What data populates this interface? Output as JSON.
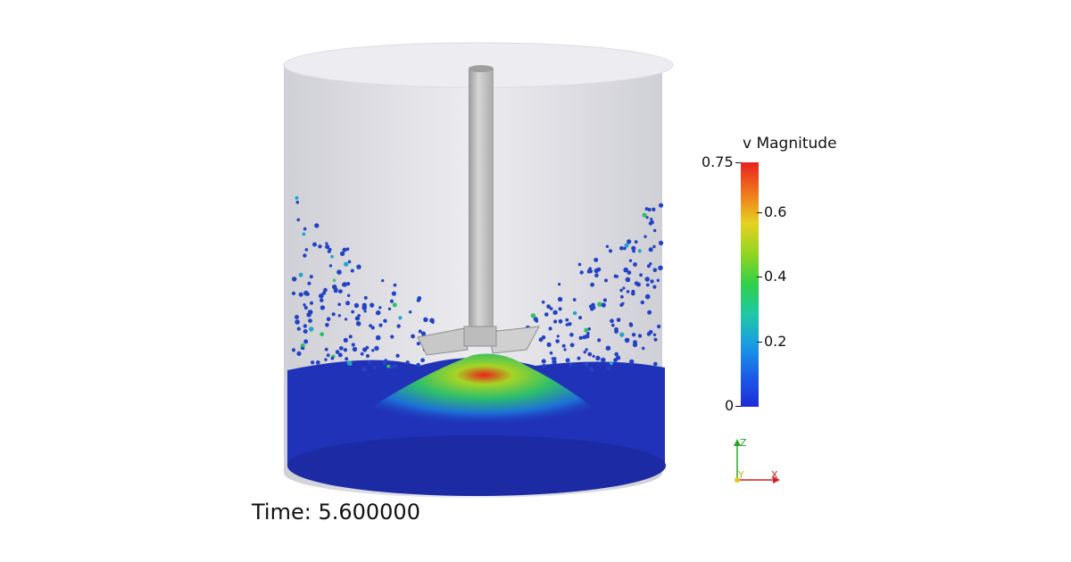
{
  "time_label": "Time: 5.600000",
  "legend": {
    "title": "v Magnitude",
    "ticks": [
      "0.75",
      "0.6",
      "0.4",
      "0.2",
      "0"
    ],
    "range": [
      0,
      0.75
    ]
  },
  "axes": {
    "z": "Z",
    "y": "Y",
    "x": "X"
  },
  "colors": {
    "background": "#ffffff",
    "tank_wall": "#d8d8de",
    "shaft": "#bdbdbd",
    "slow_particle": "#1f2fb8",
    "fast_particle": "#e8221c"
  }
}
